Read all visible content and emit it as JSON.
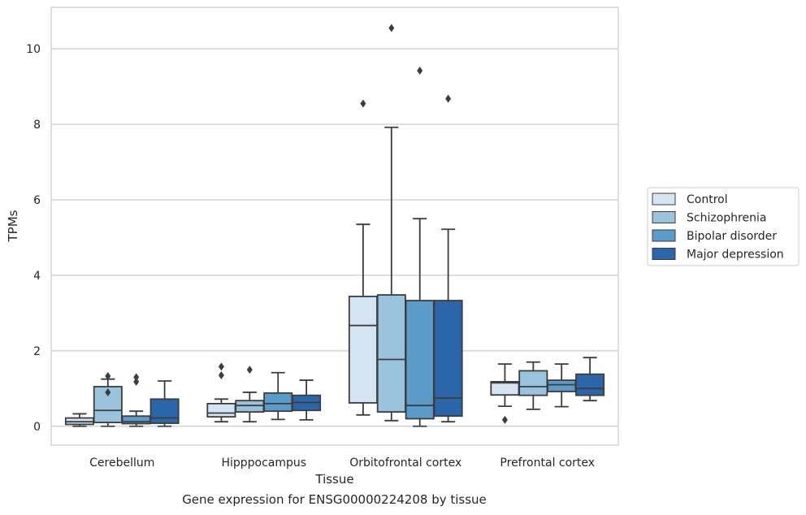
{
  "caption": "Gene expression for ENSG00000224208 by tissue",
  "chart_data": {
    "type": "box",
    "xlabel": "Tissue",
    "ylabel": "TPMs",
    "ylim": [
      -0.5,
      11.1
    ],
    "yticks": [
      0,
      2,
      4,
      6,
      8,
      10
    ],
    "grid": "horizontal",
    "legend_position": "right",
    "categories": [
      "Cerebellum",
      "Hipppocampus",
      "Orbitofrontal cortex",
      "Prefrontal cortex"
    ],
    "series": [
      {
        "name": "Control",
        "color": "#d4e4f2",
        "boxes": [
          {
            "whislo": 0.0,
            "q1": 0.05,
            "med": 0.12,
            "q3": 0.22,
            "whishi": 0.33,
            "fliers": []
          },
          {
            "whislo": 0.12,
            "q1": 0.25,
            "med": 0.35,
            "q3": 0.6,
            "whishi": 0.72,
            "fliers": [
              1.35,
              1.58
            ]
          },
          {
            "whislo": 0.3,
            "q1": 0.62,
            "med": 2.67,
            "q3": 3.44,
            "whishi": 5.35,
            "fliers": [
              8.55
            ]
          },
          {
            "whislo": 0.53,
            "q1": 0.83,
            "med": 1.15,
            "q3": 1.18,
            "whishi": 1.65,
            "fliers": [
              0.17
            ]
          }
        ]
      },
      {
        "name": "Schizophrenia",
        "color": "#9ac3de",
        "boxes": [
          {
            "whislo": 0.0,
            "q1": 0.1,
            "med": 0.42,
            "q3": 1.05,
            "whishi": 1.25,
            "fliers": [
              0.9,
              1.33
            ]
          },
          {
            "whislo": 0.12,
            "q1": 0.38,
            "med": 0.55,
            "q3": 0.68,
            "whishi": 0.9,
            "fliers": [
              1.5
            ]
          },
          {
            "whislo": 0.15,
            "q1": 0.38,
            "med": 1.77,
            "q3": 3.48,
            "whishi": 7.92,
            "fliers": [
              10.55
            ]
          },
          {
            "whislo": 0.45,
            "q1": 0.82,
            "med": 1.05,
            "q3": 1.47,
            "whishi": 1.7,
            "fliers": []
          }
        ]
      },
      {
        "name": "Bipolar disorder",
        "color": "#5b9bc9",
        "boxes": [
          {
            "whislo": 0.0,
            "q1": 0.07,
            "med": 0.12,
            "q3": 0.27,
            "whishi": 0.4,
            "fliers": [
              1.18,
              1.3
            ]
          },
          {
            "whislo": 0.18,
            "q1": 0.4,
            "med": 0.6,
            "q3": 0.88,
            "whishi": 1.42,
            "fliers": []
          },
          {
            "whislo": 0.0,
            "q1": 0.2,
            "med": 0.55,
            "q3": 3.33,
            "whishi": 5.5,
            "fliers": [
              9.42
            ]
          },
          {
            "whislo": 0.52,
            "q1": 0.92,
            "med": 1.1,
            "q3": 1.22,
            "whishi": 1.65,
            "fliers": []
          }
        ]
      },
      {
        "name": "Major depression",
        "color": "#2b67a8",
        "boxes": [
          {
            "whislo": 0.0,
            "q1": 0.08,
            "med": 0.22,
            "q3": 0.72,
            "whishi": 1.2,
            "fliers": []
          },
          {
            "whislo": 0.17,
            "q1": 0.42,
            "med": 0.63,
            "q3": 0.82,
            "whishi": 1.22,
            "fliers": []
          },
          {
            "whislo": 0.12,
            "q1": 0.27,
            "med": 0.75,
            "q3": 3.33,
            "whishi": 5.22,
            "fliers": [
              8.68
            ]
          },
          {
            "whislo": 0.68,
            "q1": 0.82,
            "med": 1.0,
            "q3": 1.38,
            "whishi": 1.82,
            "fliers": []
          }
        ]
      }
    ]
  }
}
